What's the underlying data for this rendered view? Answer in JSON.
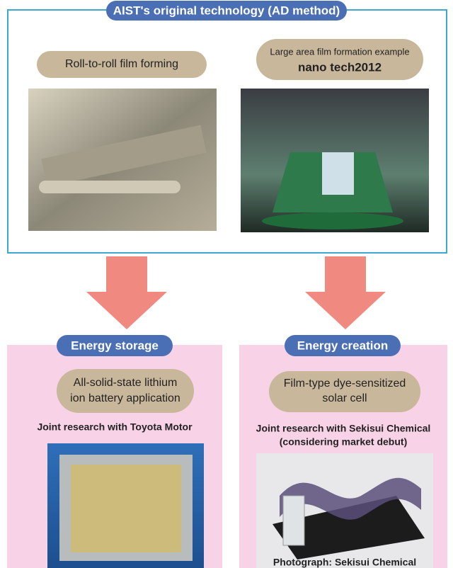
{
  "header": {
    "title": "AIST's original technology (AD method)"
  },
  "top_left": {
    "label": "Roll-to-roll film forming"
  },
  "top_right": {
    "label_small": "Large area film formation example",
    "label_large": "nano tech2012"
  },
  "bottom_left": {
    "tag": "Energy storage",
    "label_lines": [
      "All-solid-state lithium",
      "ion battery application"
    ],
    "note_lines": [
      "Joint research with Toyota Motor"
    ]
  },
  "bottom_right": {
    "tag": "Energy creation",
    "label_lines": [
      "Film-type dye-sensitized",
      "solar cell"
    ],
    "note_lines": [
      "Joint research with Sekisui Chemical",
      "(considering market debut)"
    ],
    "caption": "Photograph: Sekisui Chemical"
  }
}
